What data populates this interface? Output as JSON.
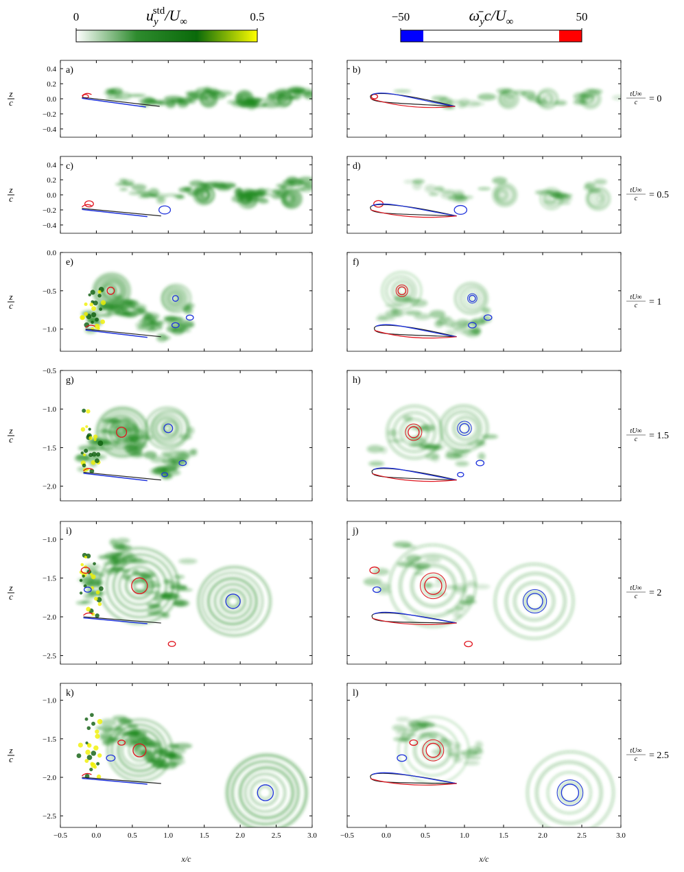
{
  "colorbars": [
    {
      "label": [
        "u",
        "y",
        "std",
        "/U",
        "∞"
      ],
      "lim": [
        0,
        0.5
      ],
      "ticks": [
        0,
        0.5
      ],
      "colors": [
        "#ffffff",
        "#2e8b2e",
        "#0a6a0a",
        "#ffff00"
      ]
    },
    {
      "label": [
        "ω̄",
        "y",
        "c/U",
        "∞"
      ],
      "lim": [
        -50,
        50
      ],
      "ticks": [
        {
          "value": -50,
          "label": "−50"
        },
        50
      ],
      "levels": [
        -37.5,
        37.5
      ],
      "colors": [
        "#0000ff",
        "#ffffff",
        "#ff0000"
      ]
    }
  ],
  "chart_data": [
    {
      "type": "field",
      "label": "a)",
      "xlim": [
        -0.5,
        3
      ],
      "ylim": [
        -0.51,
        0.51
      ],
      "yticks": [
        0.4,
        0.2,
        {
          "value": 0,
          "label": "0.0"
        },
        {
          "value": -0.2,
          "label": "−0.2"
        },
        {
          "value": -0.4,
          "label": "−0.4"
        }
      ],
      "y_label": {
        "num": "z",
        "den": "c"
      }
    },
    {
      "type": "field",
      "label": "b)",
      "xlim": [
        -0.5,
        3
      ],
      "ylim": [
        -0.51,
        0.51
      ],
      "time_label": {
        "num": "tU∞",
        "den": "c",
        "rhs": "= 0"
      }
    },
    {
      "type": "field",
      "label": "c)",
      "xlim": [
        -0.5,
        3
      ],
      "ylim": [
        -0.51,
        0.51
      ],
      "yticks": [
        0.4,
        0.2,
        {
          "value": 0,
          "label": "0.0"
        },
        {
          "value": -0.2,
          "label": "−0.2"
        },
        {
          "value": -0.4,
          "label": "−0.4"
        }
      ],
      "y_label": {
        "num": "z",
        "den": "c"
      }
    },
    {
      "type": "field",
      "label": "d)",
      "xlim": [
        -0.5,
        3
      ],
      "ylim": [
        -0.51,
        0.51
      ],
      "time_label": {
        "num": "tU∞",
        "den": "c",
        "rhs": "= 0.5"
      }
    },
    {
      "type": "field",
      "label": "e)",
      "xlim": [
        -0.5,
        3
      ],
      "ylim": [
        -1.29,
        0
      ],
      "yticks": [
        {
          "value": 0,
          "label": "0.0"
        },
        {
          "value": -0.5,
          "label": "−0.5"
        },
        {
          "value": -1,
          "label": "−1.0"
        }
      ],
      "y_label": {
        "num": "z",
        "den": "c"
      }
    },
    {
      "type": "field",
      "label": "f)",
      "xlim": [
        -0.5,
        3
      ],
      "ylim": [
        -1.29,
        0
      ],
      "time_label": {
        "num": "tU∞",
        "den": "c",
        "rhs": "= 1"
      }
    },
    {
      "type": "field",
      "label": "g)",
      "xlim": [
        -0.5,
        3
      ],
      "ylim": [
        -2.19,
        -0.5
      ],
      "yticks": [
        {
          "value": -0.5,
          "label": "−0.5"
        },
        {
          "value": -1,
          "label": "−1.0"
        },
        {
          "value": -1.5,
          "label": "−1.5"
        },
        {
          "value": -2,
          "label": "−2.0"
        }
      ],
      "y_label": {
        "num": "z",
        "den": "c"
      }
    },
    {
      "type": "field",
      "label": "h)",
      "xlim": [
        -0.5,
        3
      ],
      "ylim": [
        -2.19,
        -0.5
      ],
      "time_label": {
        "num": "tU∞",
        "den": "c",
        "rhs": "= 1.5"
      }
    },
    {
      "type": "field",
      "label": "i)",
      "xlim": [
        -0.5,
        3
      ],
      "ylim": [
        -2.61,
        -0.77
      ],
      "yticks": [
        {
          "value": -1,
          "label": "−1.0"
        },
        {
          "value": -1.5,
          "label": "−1.5"
        },
        {
          "value": -2,
          "label": "−2.0"
        },
        {
          "value": -2.5,
          "label": "−2.5"
        }
      ],
      "y_label": {
        "num": "z",
        "den": "c"
      }
    },
    {
      "type": "field",
      "label": "j)",
      "xlim": [
        -0.5,
        3
      ],
      "ylim": [
        -2.61,
        -0.77
      ],
      "time_label": {
        "num": "tU∞",
        "den": "c",
        "rhs": "= 2"
      }
    },
    {
      "type": "field",
      "label": "k)",
      "xlim": [
        -0.5,
        3
      ],
      "ylim": [
        -2.65,
        -0.78
      ],
      "yticks": [
        {
          "value": -1,
          "label": "−1.0"
        },
        {
          "value": -1.5,
          "label": "−1.5"
        },
        {
          "value": -2,
          "label": "−2.0"
        },
        {
          "value": -2.5,
          "label": "−2.5"
        }
      ],
      "y_label": {
        "num": "z",
        "den": "c"
      },
      "xticks": [
        {
          "value": -0.5,
          "label": "−0.5"
        },
        {
          "value": 0,
          "label": "0.0"
        },
        0.5,
        {
          "value": 1,
          "label": "1.0"
        },
        1.5,
        {
          "value": 2,
          "label": "2.0"
        },
        2.5,
        {
          "value": 3,
          "label": "3.0"
        }
      ],
      "x_label": "x/c"
    },
    {
      "type": "field",
      "label": "l)",
      "xlim": [
        -0.5,
        3
      ],
      "ylim": [
        -2.65,
        -0.78
      ],
      "time_label": {
        "num": "tU∞",
        "den": "c",
        "rhs": "= 2.5"
      },
      "xticks": [
        {
          "value": -0.5,
          "label": "−0.5"
        },
        {
          "value": 0,
          "label": "0.0"
        },
        0.5,
        {
          "value": 1,
          "label": "1.0"
        },
        1.5,
        {
          "value": 2,
          "label": "2.0"
        },
        2.5,
        {
          "value": 3,
          "label": "3.0"
        }
      ],
      "x_label": "x/c"
    }
  ]
}
